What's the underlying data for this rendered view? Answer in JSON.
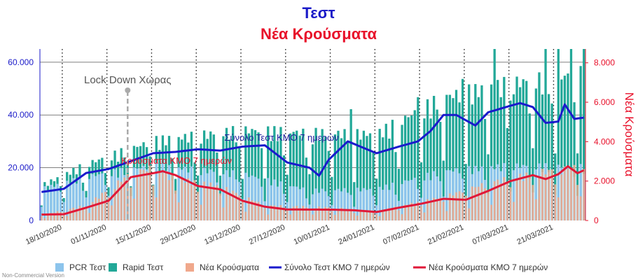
{
  "chart_data": {
    "type": "bar",
    "title": "Τεστ",
    "subtitle": "Νέα Κρούσματα",
    "ylabel_right": "Νέα Κρούσματα",
    "left_axis": {
      "ticks": [
        0,
        20000,
        40000,
        60000
      ],
      "tick_labels": [
        "0",
        "20.000",
        "40.000",
        "60.000"
      ],
      "max": 65000
    },
    "right_axis": {
      "ticks": [
        0,
        2000,
        4000,
        6000,
        8000
      ],
      "tick_labels": [
        "0",
        "2.000",
        "4.000",
        "6.000",
        "8.000"
      ],
      "max": 8700
    },
    "start_date": "2020-10-11",
    "x_tick_labels": [
      "18/10/2020",
      "01/11/2020",
      "15/11/2020",
      "29/11/2020",
      "13/12/2020",
      "27/12/2020",
      "10/01/2021",
      "24/01/2021",
      "07/02/2021",
      "21/02/2021",
      "07/03/2021",
      "21/03/2021"
    ],
    "x_tick_days": [
      7,
      21,
      35,
      49,
      63,
      77,
      91,
      105,
      119,
      133,
      147,
      161
    ],
    "legend_position": "bottom",
    "legend": [
      {
        "key": "pcr",
        "label": "PCR Τεστ",
        "color": "#8cc4ec",
        "kind": "bar"
      },
      {
        "key": "rapid",
        "label": "Rapid Τεστ",
        "color": "#22a898",
        "kind": "bar"
      },
      {
        "key": "cases",
        "label": "Νέα Κρούσματα",
        "color": "#f0a88c",
        "kind": "bar"
      },
      {
        "key": "tests7",
        "label": "Σύνολο Τεστ ΚΜΟ 7 ημερών",
        "color": "#1a1acc",
        "kind": "line"
      },
      {
        "key": "cases7",
        "label": "Νέα Κρούσματα ΚΜΟ 7 ημερών",
        "color": "#e01838",
        "kind": "line"
      }
    ],
    "annotations": {
      "lockdown": {
        "label": "Lock Down Χώρας",
        "date": "2020-11-07"
      },
      "tests_line_label": "Σύνολο Τεστ ΚΜΟ 7 ημερών",
      "cases_line_label": "Κρούσματα ΚΜΟ 7 ημερών"
    },
    "daily_pcr_anchors": [
      [
        0,
        11500
      ],
      [
        14,
        16000
      ],
      [
        35,
        20000
      ],
      [
        63,
        17000
      ],
      [
        84,
        11000
      ],
      [
        105,
        11500
      ],
      [
        126,
        18000
      ],
      [
        147,
        20000
      ],
      [
        170,
        19500
      ]
    ],
    "daily_rapid_anchors": [
      [
        0,
        1200
      ],
      [
        14,
        4500
      ],
      [
        35,
        9000
      ],
      [
        63,
        16000
      ],
      [
        84,
        21000
      ],
      [
        105,
        20000
      ],
      [
        126,
        27000
      ],
      [
        147,
        30000
      ],
      [
        170,
        34000
      ]
    ],
    "daily_rapid_spikes": [
      [
        97,
        15000
      ],
      [
        118,
        16000
      ],
      [
        132,
        14000
      ],
      [
        142,
        20000
      ],
      [
        147,
        18000
      ],
      [
        158,
        25000
      ],
      [
        162,
        25000
      ],
      [
        166,
        35000
      ],
      [
        170,
        38000
      ]
    ],
    "daily_cases_anchors": [
      [
        0,
        250
      ],
      [
        14,
        700
      ],
      [
        28,
        2200
      ],
      [
        35,
        2450
      ],
      [
        42,
        1950
      ],
      [
        56,
        1600
      ],
      [
        70,
        700
      ],
      [
        91,
        600
      ],
      [
        105,
        420
      ],
      [
        126,
        1100
      ],
      [
        140,
        1750
      ],
      [
        156,
        2250
      ],
      [
        166,
        2450
      ],
      [
        170,
        2500
      ]
    ],
    "tests7_anchors": [
      [
        0,
        10800
      ],
      [
        7,
        12000
      ],
      [
        14,
        18000
      ],
      [
        21,
        19500
      ],
      [
        35,
        25500
      ],
      [
        42,
        26000
      ],
      [
        49,
        27000
      ],
      [
        56,
        26500
      ],
      [
        63,
        28000
      ],
      [
        70,
        28500
      ],
      [
        77,
        22000
      ],
      [
        84,
        20000
      ],
      [
        87,
        17000
      ],
      [
        90,
        23000
      ],
      [
        96,
        30000
      ],
      [
        105,
        25500
      ],
      [
        112,
        28000
      ],
      [
        118,
        30000
      ],
      [
        122,
        34000
      ],
      [
        126,
        40000
      ],
      [
        130,
        40000
      ],
      [
        136,
        36000
      ],
      [
        140,
        41000
      ],
      [
        147,
        43500
      ],
      [
        150,
        44500
      ],
      [
        154,
        43000
      ],
      [
        158,
        37000
      ],
      [
        162,
        37500
      ],
      [
        164,
        44000
      ],
      [
        167,
        38500
      ],
      [
        170,
        39000
      ]
    ],
    "cases7_anchors": [
      [
        0,
        300
      ],
      [
        7,
        320
      ],
      [
        14,
        650
      ],
      [
        21,
        1000
      ],
      [
        28,
        2200
      ],
      [
        35,
        2400
      ],
      [
        38,
        2500
      ],
      [
        42,
        2300
      ],
      [
        49,
        1750
      ],
      [
        56,
        1580
      ],
      [
        63,
        1000
      ],
      [
        70,
        700
      ],
      [
        77,
        560
      ],
      [
        91,
        550
      ],
      [
        98,
        520
      ],
      [
        105,
        430
      ],
      [
        112,
        650
      ],
      [
        119,
        850
      ],
      [
        126,
        1100
      ],
      [
        133,
        1050
      ],
      [
        140,
        1500
      ],
      [
        147,
        2000
      ],
      [
        154,
        2300
      ],
      [
        158,
        2100
      ],
      [
        162,
        2350
      ],
      [
        165,
        2750
      ],
      [
        168,
        2400
      ],
      [
        170,
        2550
      ]
    ]
  }
}
